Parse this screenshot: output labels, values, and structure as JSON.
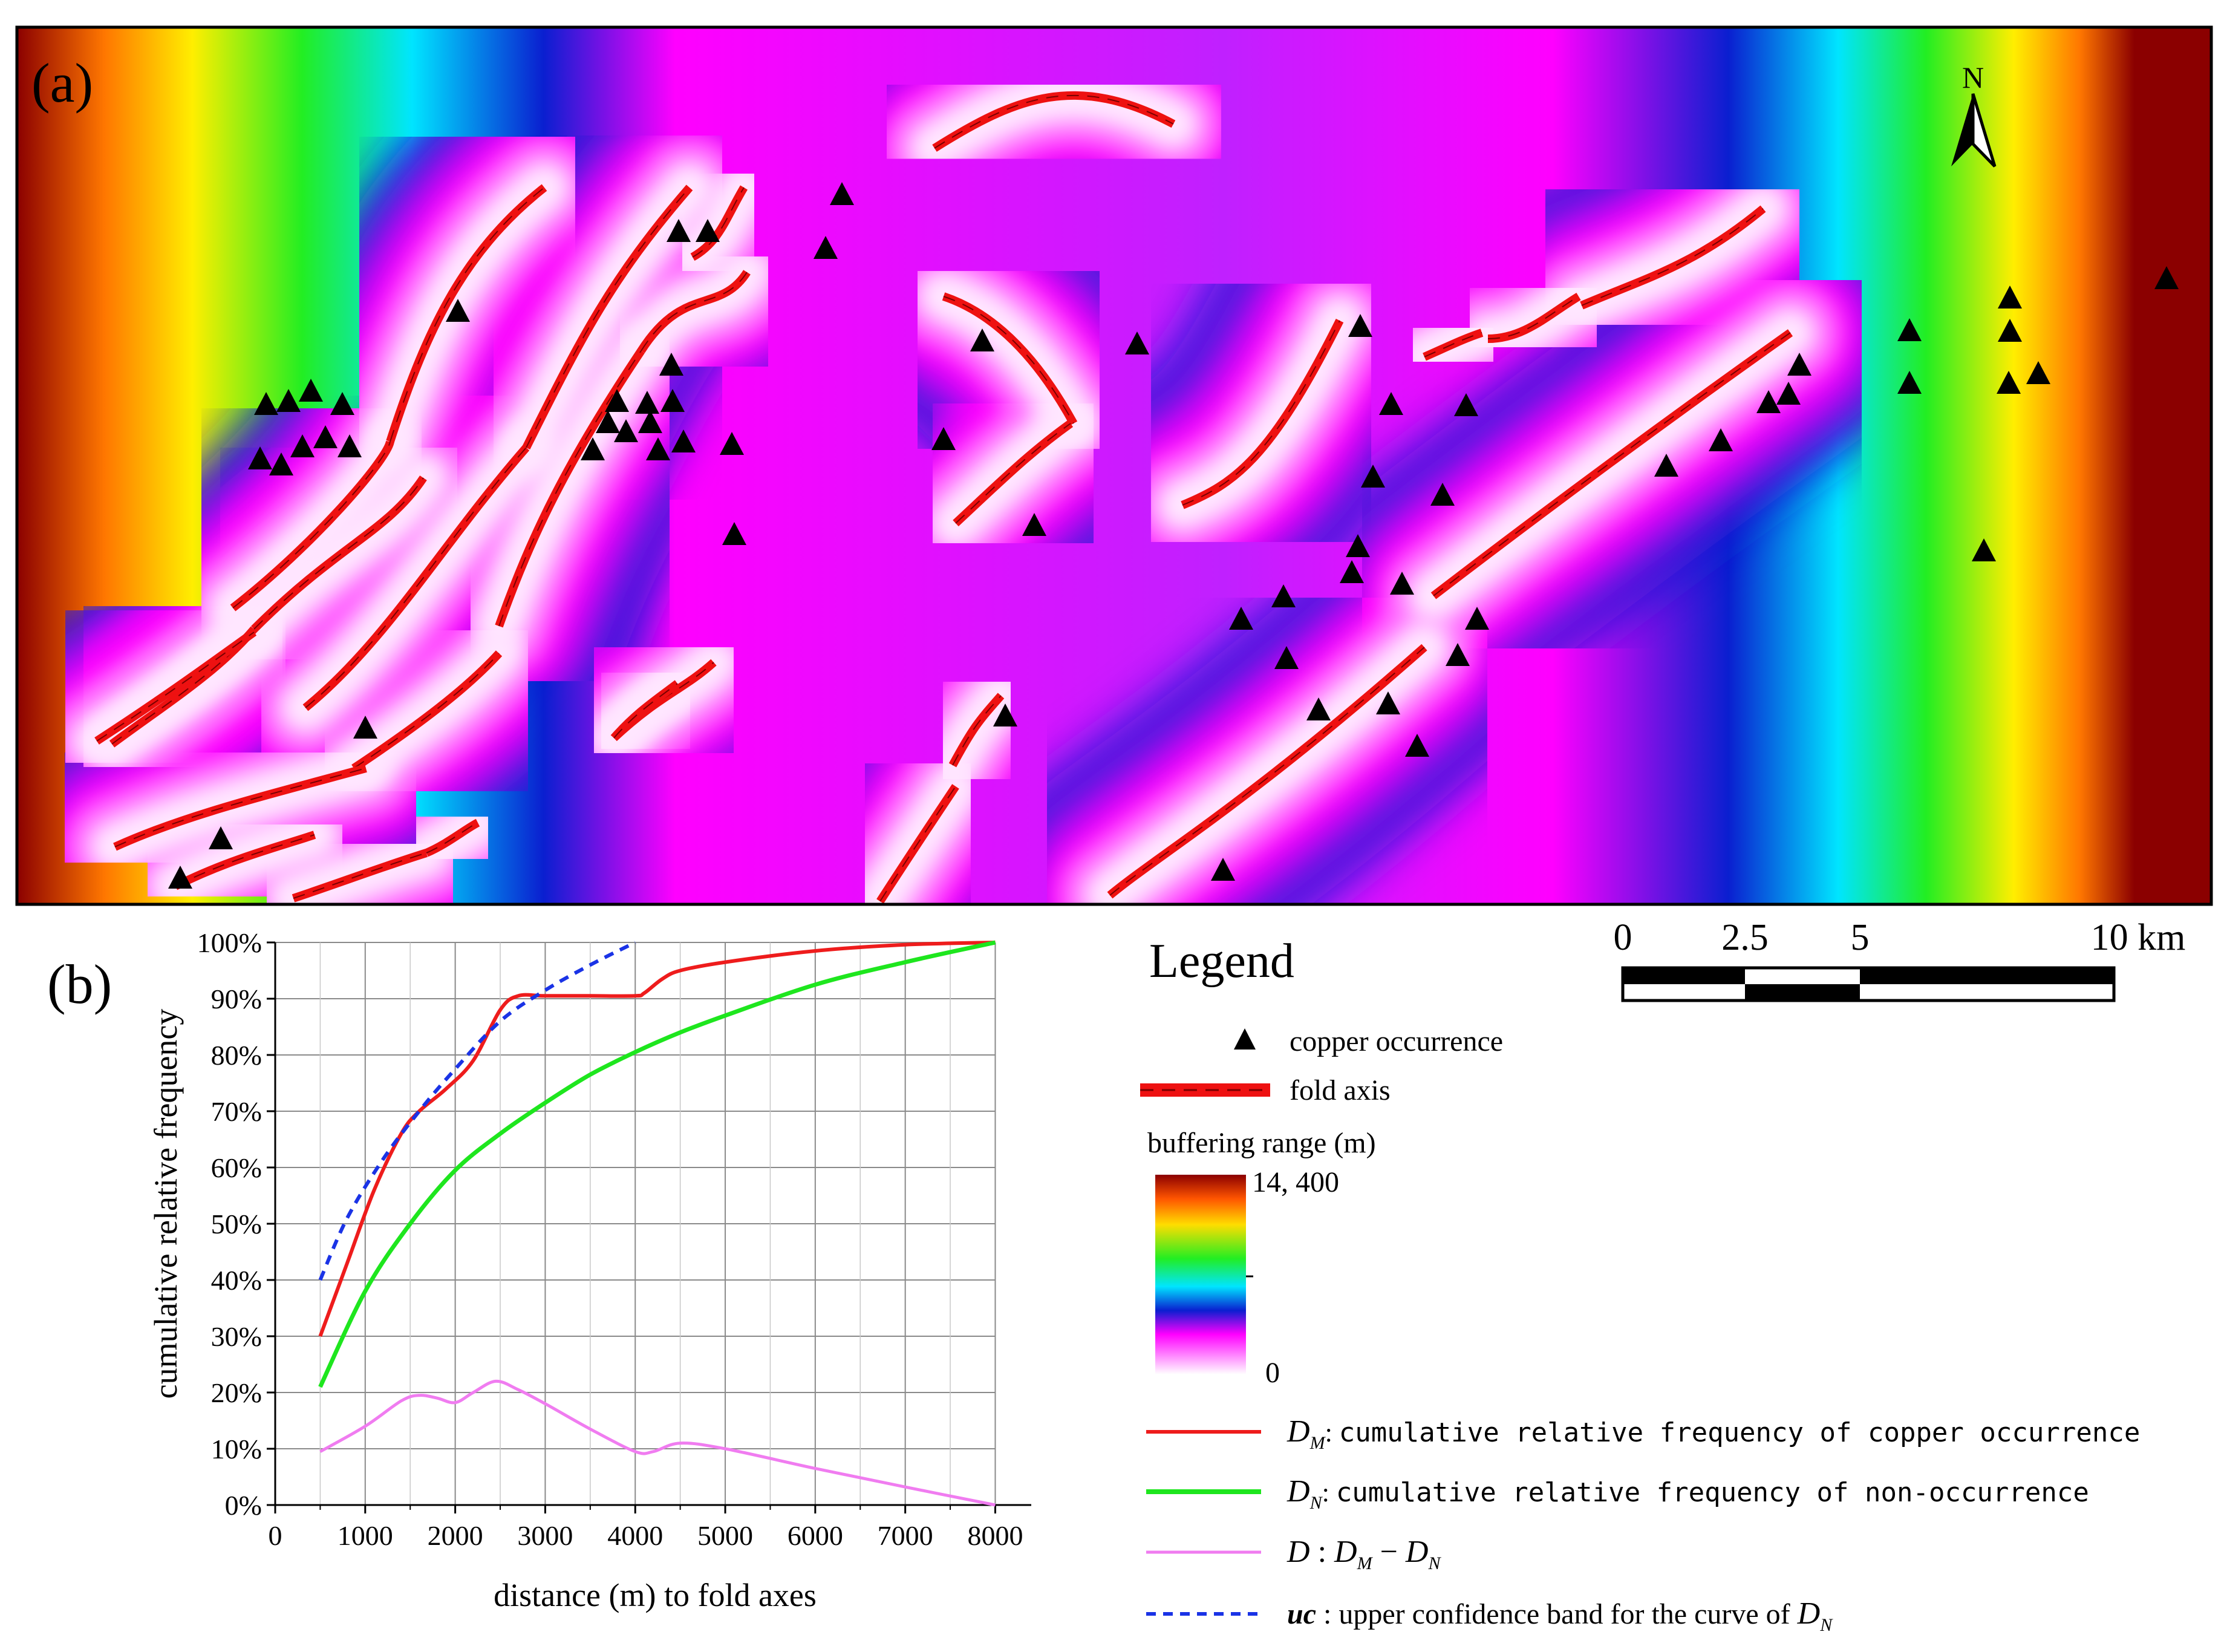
{
  "panel_a": {
    "label": "(a)",
    "north_label": "N",
    "scale": {
      "ticks": [
        "0",
        "2.5",
        "5",
        "10 km"
      ]
    }
  },
  "legend": {
    "title": "Legend",
    "occurrence_label": "copper occurrence",
    "fold_axis_label": "fold axis",
    "buffer_title": "buffering range (m)",
    "buffer_max": "14, 400",
    "buffer_min": "0",
    "colors": {
      "occurrence": "#000000",
      "fold_axis": "#ee1111",
      "D_M": "#ee1c1c",
      "D_N": "#1ee61e",
      "D": "#f07cf0",
      "uc": "#1a33e6"
    },
    "series": [
      {
        "key": "DM",
        "sym": "D",
        "sub": "M",
        "text": "cumulative relative frequency of copper occurrence"
      },
      {
        "key": "DN",
        "sym": "D",
        "sub": "N",
        "text": "cumulative relative frequency of non-occurrence"
      },
      {
        "key": "D",
        "sym": "D",
        "sub": "",
        "text": "D",
        "sub_a": "M",
        "minus": " − ",
        "sub_b": "N"
      },
      {
        "key": "uc",
        "sym": "uc",
        "sub": "",
        "text": "upper confidence band for the curve of",
        "tail_sym": "D",
        "tail_sub": "N"
      }
    ]
  },
  "chart_data": {
    "type": "line",
    "panel_label": "(b)",
    "xlabel": "distance (m) to fold axes",
    "ylabel": "cumulative relative frequency",
    "xlim": [
      0,
      8400
    ],
    "ylim": [
      0,
      100
    ],
    "x_ticks": [
      "0",
      "1000",
      "2000",
      "3000",
      "4000",
      "5000",
      "6000",
      "7000",
      "8000"
    ],
    "y_ticks": [
      "0%",
      "10%",
      "20%",
      "30%",
      "40%",
      "50%",
      "60%",
      "70%",
      "80%",
      "90%",
      "100%"
    ],
    "grid": true,
    "series": [
      {
        "name": "DM",
        "color": "#ee1c1c",
        "x": [
          500,
          800,
          1100,
          1400,
          1600,
          1900,
          2200,
          2500,
          2700,
          3000,
          3500,
          4000,
          4100,
          4300,
          4500,
          5000,
          6000,
          7000,
          8000
        ],
        "y": [
          30,
          43,
          56,
          66,
          70,
          74,
          79,
          88,
          90.5,
          90.5,
          90.5,
          90.5,
          91,
          93.5,
          95,
          96.5,
          98.5,
          99.6,
          100
        ]
      },
      {
        "name": "DN",
        "color": "#1ee61e",
        "x": [
          500,
          1000,
          1500,
          2000,
          2500,
          3000,
          3500,
          4000,
          4500,
          5000,
          6000,
          7000,
          8000
        ],
        "y": [
          21,
          38,
          50,
          59.5,
          66,
          71.5,
          76.5,
          80.5,
          84,
          87,
          92.5,
          96.5,
          100
        ]
      },
      {
        "name": "D",
        "color": "#f07cf0",
        "x": [
          500,
          1000,
          1400,
          1600,
          1800,
          2000,
          2200,
          2450,
          2700,
          3000,
          3500,
          4000,
          4200,
          4500,
          5000,
          6000,
          7000,
          8000
        ],
        "y": [
          9.5,
          14,
          18.5,
          19.5,
          19,
          18.2,
          20,
          22,
          20.5,
          18,
          13.5,
          9.5,
          9.5,
          11,
          10,
          6.5,
          3.2,
          0
        ]
      },
      {
        "name": "uc",
        "color": "#1a33e6",
        "dash": true,
        "x": [
          500,
          800,
          1200,
          1600,
          2000,
          2500,
          3000,
          3500,
          4000
        ],
        "y": [
          40,
          51,
          61.5,
          70,
          77.5,
          86,
          91.5,
          96,
          100
        ]
      }
    ]
  }
}
